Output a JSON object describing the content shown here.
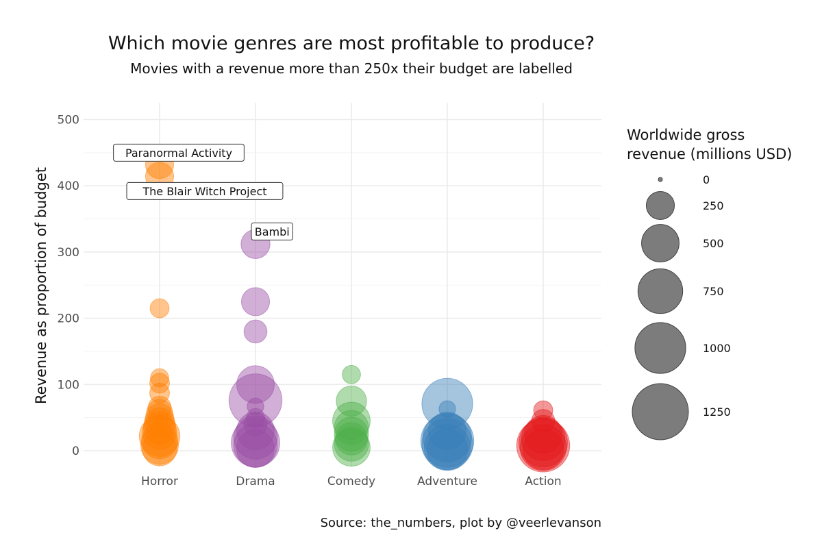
{
  "chart_data": {
    "type": "scatter",
    "title": "Which movie genres are most profitable to produce?",
    "subtitle": "Movies with a revenue more than 250x their budget are labelled",
    "ylabel": "Revenue as proportion of budget",
    "xlabel": "",
    "caption": "Source: the_numbers, plot by @veerlevanson",
    "categories": [
      "Horror",
      "Drama",
      "Comedy",
      "Adventure",
      "Action"
    ],
    "ylim": [
      -25,
      525
    ],
    "yticks": [
      0,
      100,
      200,
      300,
      400,
      500
    ],
    "grid": true,
    "legend": {
      "title_line1": "Worldwide gross",
      "title_line2": "revenue (millions USD)",
      "placement": "right",
      "sizes": [
        0,
        250,
        500,
        750,
        1000,
        1250
      ]
    },
    "series": [
      {
        "category": "Horror",
        "color": "#ff7f00",
        "points": [
          {
            "y": 432,
            "size": 250
          },
          {
            "y": 414,
            "size": 250
          },
          {
            "y": 215,
            "size": 90
          },
          {
            "y": 110,
            "size": 80
          },
          {
            "y": 102,
            "size": 100
          },
          {
            "y": 87,
            "size": 100
          },
          {
            "y": 65,
            "size": 150
          },
          {
            "y": 58,
            "size": 200
          },
          {
            "y": 50,
            "size": 250
          },
          {
            "y": 42,
            "size": 300
          },
          {
            "y": 35,
            "size": 350
          },
          {
            "y": 28,
            "size": 400
          },
          {
            "y": 22,
            "size": 600
          },
          {
            "y": 15,
            "size": 450
          },
          {
            "y": 8,
            "size": 500
          },
          {
            "y": 3,
            "size": 400
          }
        ]
      },
      {
        "category": "Drama",
        "color": "#984ea3",
        "points": [
          {
            "y": 312,
            "size": 270
          },
          {
            "y": 225,
            "size": 250
          },
          {
            "y": 180,
            "size": 150
          },
          {
            "y": 100,
            "size": 500
          },
          {
            "y": 76,
            "size": 1100
          },
          {
            "y": 67,
            "size": 60
          },
          {
            "y": 50,
            "size": 80
          },
          {
            "y": 40,
            "size": 150
          },
          {
            "y": 30,
            "size": 500
          },
          {
            "y": 20,
            "size": 700
          },
          {
            "y": 12,
            "size": 900
          },
          {
            "y": 8,
            "size": 700
          },
          {
            "y": 3,
            "size": 500
          }
        ]
      },
      {
        "category": "Comedy",
        "color": "#4daf4a",
        "points": [
          {
            "y": 115,
            "size": 80
          },
          {
            "y": 75,
            "size": 300
          },
          {
            "y": 45,
            "size": 500
          },
          {
            "y": 35,
            "size": 400
          },
          {
            "y": 25,
            "size": 400
          },
          {
            "y": 18,
            "size": 350
          },
          {
            "y": 10,
            "size": 400
          },
          {
            "y": 5,
            "size": 500
          }
        ]
      },
      {
        "category": "Adventure",
        "color": "#377eb8",
        "points": [
          {
            "y": 71,
            "size": 1000
          },
          {
            "y": 63,
            "size": 60
          },
          {
            "y": 30,
            "size": 500
          },
          {
            "y": 20,
            "size": 900
          },
          {
            "y": 15,
            "size": 1100
          },
          {
            "y": 10,
            "size": 1000
          },
          {
            "y": 5,
            "size": 800
          },
          {
            "y": 2,
            "size": 600
          }
        ]
      },
      {
        "category": "Action",
        "color": "#e41a1c",
        "points": [
          {
            "y": 61,
            "size": 90
          },
          {
            "y": 45,
            "size": 150
          },
          {
            "y": 25,
            "size": 500
          },
          {
            "y": 18,
            "size": 700
          },
          {
            "y": 12,
            "size": 900
          },
          {
            "y": 8,
            "size": 1100
          },
          {
            "y": 5,
            "size": 800
          },
          {
            "y": 2,
            "size": 600
          }
        ]
      }
    ],
    "annotations": [
      {
        "label": "Paranormal Activity",
        "category": "Horror",
        "y": 450,
        "anchor": "center"
      },
      {
        "label": "The Blair Witch Project",
        "category": "Horror",
        "y": 392,
        "anchor": "left"
      },
      {
        "label": "Bambi",
        "category": "Drama",
        "y": 331,
        "anchor": "left"
      }
    ]
  }
}
